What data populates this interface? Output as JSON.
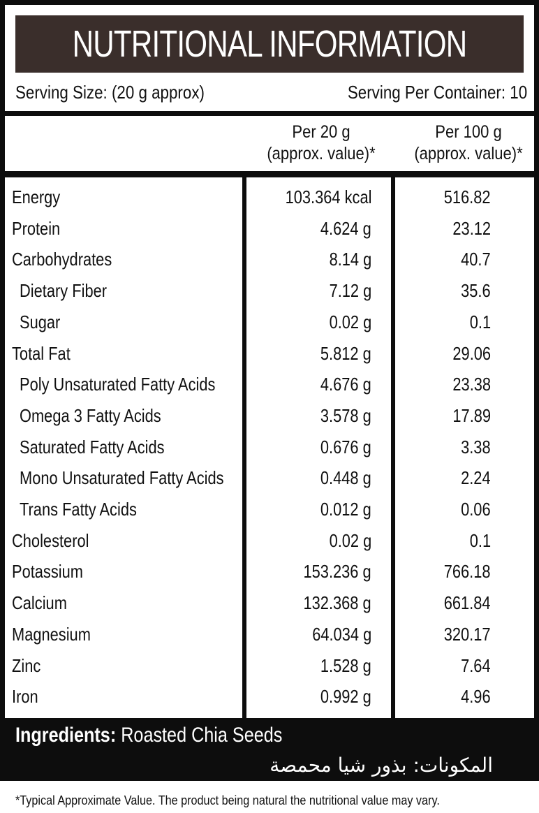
{
  "title": "NUTRITIONAL INFORMATION",
  "serving_size": "Serving Size: (20 g approx)",
  "servings_per_container": "Serving Per Container: 10",
  "columns": [
    {
      "line1": "Per 20 g",
      "line2": "(approx. value)*"
    },
    {
      "line1": "Per 100 g",
      "line2": "(approx. value)*"
    }
  ],
  "rows": [
    {
      "name": "Energy",
      "per20": "103.364 kcal",
      "per100": "516.82",
      "indent": false
    },
    {
      "name": "Protein",
      "per20": "4.624 g",
      "per100": "23.12",
      "indent": false
    },
    {
      "name": "Carbohydrates",
      "per20": "8.14 g",
      "per100": "40.7",
      "indent": false
    },
    {
      "name": "Dietary Fiber",
      "per20": "7.12 g",
      "per100": "35.6",
      "indent": true
    },
    {
      "name": "Sugar",
      "per20": "0.02 g",
      "per100": "0.1",
      "indent": true
    },
    {
      "name": "Total Fat",
      "per20": "5.812 g",
      "per100": "29.06",
      "indent": false
    },
    {
      "name": "Poly Unsaturated Fatty Acids",
      "per20": "4.676 g",
      "per100": "23.38",
      "indent": true
    },
    {
      "name": "Omega 3 Fatty Acids",
      "per20": "3.578 g",
      "per100": "17.89",
      "indent": true
    },
    {
      "name": "Saturated Fatty Acids",
      "per20": "0.676 g",
      "per100": "3.38",
      "indent": true
    },
    {
      "name": "Mono Unsaturated Fatty Acids",
      "per20": "0.448 g",
      "per100": "2.24",
      "indent": true
    },
    {
      "name": "Trans Fatty Acids",
      "per20": "0.012 g",
      "per100": "0.06",
      "indent": true
    },
    {
      "name": "Cholesterol",
      "per20": "0.02 g",
      "per100": "0.1",
      "indent": false
    },
    {
      "name": "Potassium",
      "per20": "153.236 g",
      "per100": "766.18",
      "indent": false
    },
    {
      "name": "Calcium",
      "per20": "132.368 g",
      "per100": "661.84",
      "indent": false
    },
    {
      "name": "Magnesium",
      "per20": "64.034 g",
      "per100": "320.17",
      "indent": false
    },
    {
      "name": "Zinc",
      "per20": "1.528 g",
      "per100": "7.64",
      "indent": false
    },
    {
      "name": "Iron",
      "per20": "0.992 g",
      "per100": "4.96",
      "indent": false
    }
  ],
  "ingredients": {
    "label": "Ingredients:",
    "text": "Roasted Chia Seeds"
  },
  "ingredients_arabic": "المكونات: بذور شيا محمصة",
  "footnote": "*Typical Approximate Value. The product being natural the nutritional value may vary.",
  "colors": {
    "title_bar": "#3a2e2b",
    "frame": "#0d0d0d"
  }
}
